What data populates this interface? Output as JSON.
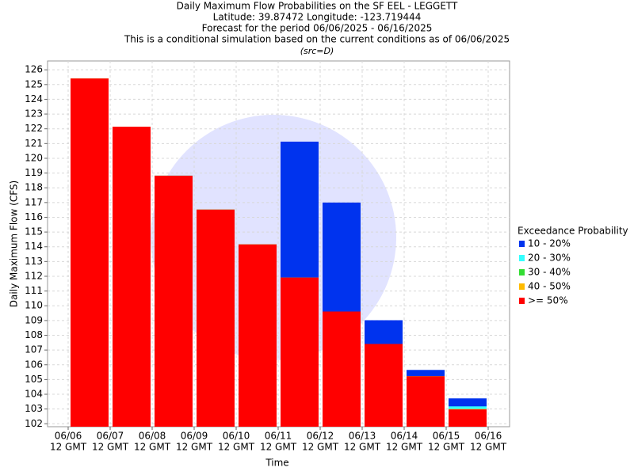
{
  "chart_data": {
    "type": "bar",
    "title": "Daily Maximum Flow Probabilities on the SF EEL - LEGGETT",
    "subtitle": [
      "Latitude: 39.87472 Longitude: -123.719444",
      "Forecast for the period 06/06/2025 - 06/16/2025",
      "This is a conditional simulation based on the current conditions as of 06/06/2025"
    ],
    "note": "(src=D)",
    "ylabel": "Daily Maximum Flow (CFS)",
    "xlabel": "Time",
    "legend_title": "Exceedance Probability",
    "xticks": [
      {
        "date": "06/06",
        "time": "12 GMT"
      },
      {
        "date": "06/07",
        "time": "12 GMT"
      },
      {
        "date": "06/08",
        "time": "12 GMT"
      },
      {
        "date": "06/09",
        "time": "12 GMT"
      },
      {
        "date": "06/10",
        "time": "12 GMT"
      },
      {
        "date": "06/11",
        "time": "12 GMT"
      },
      {
        "date": "06/12",
        "time": "12 GMT"
      },
      {
        "date": "06/13",
        "time": "12 GMT"
      },
      {
        "date": "06/14",
        "time": "12 GMT"
      },
      {
        "date": "06/15",
        "time": "12 GMT"
      },
      {
        "date": "06/16",
        "time": "12 GMT"
      }
    ],
    "series": [
      {
        "name": "10 - 20%",
        "color": "#0033ee",
        "values": [
          125.41,
          122.14,
          118.82,
          116.52,
          114.16,
          121.13,
          117.0,
          109.02,
          105.65,
          103.72
        ]
      },
      {
        "name": "20 - 30%",
        "color": "#33ffff",
        "values": [
          125.41,
          122.14,
          118.82,
          116.52,
          114.16,
          111.91,
          109.61,
          107.41,
          105.22,
          103.18
        ]
      },
      {
        "name": "30 - 40%",
        "color": "#33dd33",
        "values": [
          125.41,
          122.14,
          118.82,
          116.52,
          114.16,
          111.91,
          109.61,
          107.41,
          105.22,
          103.0
        ]
      },
      {
        "name": "40 - 50%",
        "color": "#ffbb00",
        "values": [
          125.41,
          122.14,
          118.82,
          116.52,
          114.16,
          111.91,
          109.61,
          107.41,
          105.22,
          103.0
        ]
      },
      {
        "name": ">= 50%",
        "color": "#ff0000",
        "values": [
          125.41,
          122.14,
          118.82,
          116.52,
          114.16,
          111.91,
          109.61,
          107.41,
          105.22,
          102.97
        ]
      }
    ],
    "ylim": [
      101.8,
      126.6
    ],
    "yticks": [
      102,
      103,
      104,
      105,
      106,
      107,
      108,
      109,
      110,
      111,
      112,
      113,
      114,
      115,
      116,
      117,
      118,
      119,
      120,
      121,
      122,
      123,
      124,
      125,
      126
    ],
    "grid": true
  }
}
